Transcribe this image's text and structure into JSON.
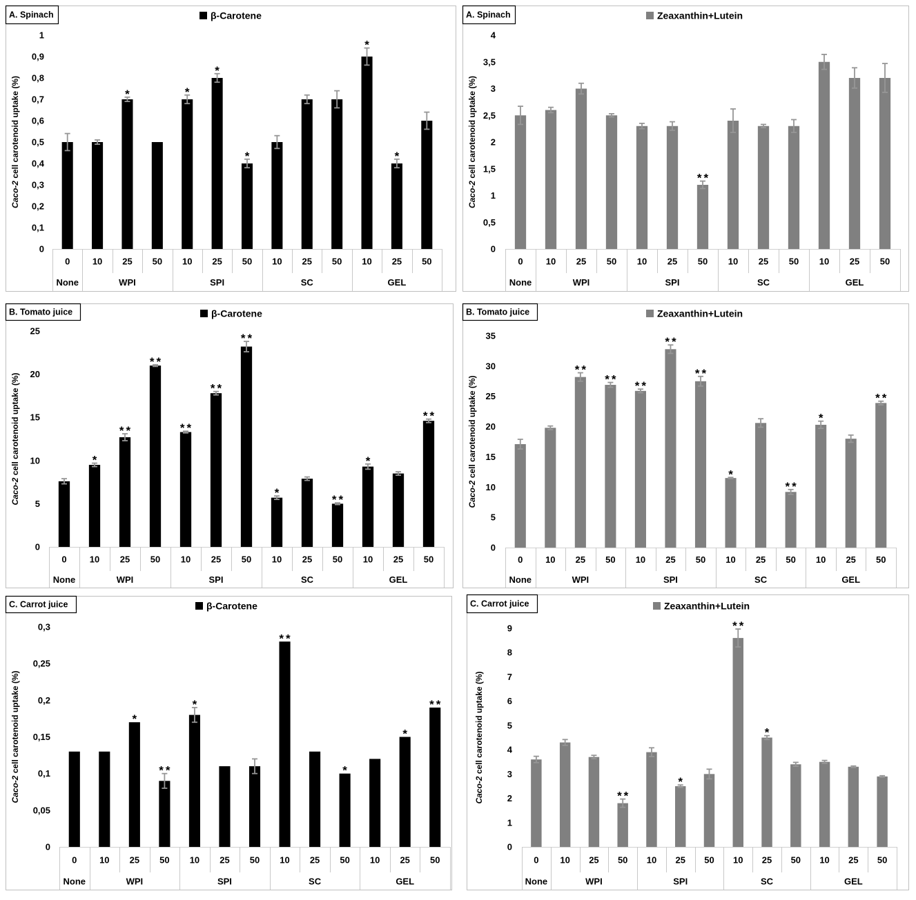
{
  "colors": {
    "error_bar": "#969696",
    "frame": "#bfbfbf",
    "axis": "#d0d0d0",
    "separator": "#c8c8c8"
  },
  "chart_data": [
    {
      "type": "bar",
      "panel_label": "A. Spinach",
      "ylabel": {
        "italic": "Caco-2",
        "rest": "cell carotenoid uptake (%)"
      },
      "ylim": [
        0,
        1
      ],
      "yticks": [
        "0",
        "0,1",
        "0,2",
        "0,3",
        "0,4",
        "0,5",
        "0,6",
        "0,7",
        "0,8",
        "0,9",
        "1"
      ],
      "categories": [
        "0",
        "10",
        "25",
        "50",
        "10",
        "25",
        "50",
        "10",
        "25",
        "50",
        "10",
        "25",
        "50"
      ],
      "groups": [
        {
          "name": "None",
          "size": 1
        },
        {
          "name": "WPI",
          "size": 3
        },
        {
          "name": "SPI",
          "size": 3
        },
        {
          "name": "SC",
          "size": 3
        },
        {
          "name": "GEL",
          "size": 3
        }
      ],
      "legend_position": "top",
      "grid": false,
      "series": [
        {
          "name": "β-Carotene",
          "color": "#000000",
          "values": [
            0.5,
            0.5,
            0.7,
            0.5,
            0.7,
            0.8,
            0.4,
            0.5,
            0.7,
            0.7,
            0.9,
            0.4,
            0.6
          ],
          "errors": [
            0.04,
            0.01,
            0.01,
            0.0,
            0.02,
            0.02,
            0.02,
            0.03,
            0.02,
            0.04,
            0.04,
            0.02,
            0.04
          ],
          "significance": [
            "",
            "",
            "*",
            "",
            "*",
            "*",
            "*",
            "",
            "",
            "",
            "*",
            "*",
            ""
          ]
        }
      ]
    },
    {
      "type": "bar",
      "panel_label": "A. Spinach",
      "ylabel": {
        "italic": "Caco-2",
        "rest": "cell carotenoid uptake (%)"
      },
      "ylim": [
        0,
        4
      ],
      "yticks": [
        "0",
        "0,5",
        "1",
        "1,5",
        "2",
        "2,5",
        "3",
        "3,5",
        "4"
      ],
      "categories": [
        "0",
        "10",
        "25",
        "50",
        "10",
        "25",
        "50",
        "10",
        "25",
        "50",
        "10",
        "25",
        "50"
      ],
      "groups": [
        {
          "name": "None",
          "size": 1
        },
        {
          "name": "WPI",
          "size": 3
        },
        {
          "name": "SPI",
          "size": 3
        },
        {
          "name": "SC",
          "size": 3
        },
        {
          "name": "GEL",
          "size": 3
        }
      ],
      "legend_position": "top",
      "grid": false,
      "series": [
        {
          "name": "Zeaxanthin+Lutein",
          "color": "#808080",
          "values": [
            2.5,
            2.6,
            3.0,
            2.5,
            2.3,
            2.3,
            1.2,
            2.4,
            2.3,
            2.3,
            3.5,
            3.2,
            3.2
          ],
          "errors": [
            0.17,
            0.05,
            0.1,
            0.03,
            0.05,
            0.08,
            0.07,
            0.22,
            0.03,
            0.12,
            0.14,
            0.19,
            0.27
          ],
          "significance": [
            "",
            "",
            "",
            "",
            "",
            "",
            "**",
            "",
            "",
            "",
            "",
            "",
            ""
          ]
        }
      ]
    },
    {
      "type": "bar",
      "panel_label": "B. Tomato juice",
      "ylabel": {
        "italic": "Caco-2",
        "rest": "cell carotenoid uptake (%)"
      },
      "ylim": [
        0,
        25
      ],
      "yticks": [
        "0",
        "5",
        "10",
        "15",
        "20",
        "25"
      ],
      "categories": [
        "0",
        "10",
        "25",
        "50",
        "10",
        "25",
        "50",
        "10",
        "25",
        "50",
        "10",
        "25",
        "50"
      ],
      "groups": [
        {
          "name": "None",
          "size": 1
        },
        {
          "name": "WPI",
          "size": 3
        },
        {
          "name": "SPI",
          "size": 3
        },
        {
          "name": "SC",
          "size": 3
        },
        {
          "name": "GEL",
          "size": 3
        }
      ],
      "legend_position": "top",
      "grid": false,
      "series": [
        {
          "name": "β-Carotene",
          "color": "#000000",
          "values": [
            7.6,
            9.5,
            12.7,
            21.0,
            13.3,
            17.8,
            23.2,
            5.7,
            7.9,
            5.0,
            9.3,
            8.5,
            14.6
          ],
          "errors": [
            0.3,
            0.2,
            0.4,
            0.1,
            0.1,
            0.2,
            0.6,
            0.2,
            0.2,
            0.1,
            0.3,
            0.2,
            0.2
          ],
          "significance": [
            "",
            "*",
            "**",
            "**",
            "**",
            "**",
            "**",
            "*",
            "",
            "**",
            "*",
            "",
            "**"
          ]
        }
      ]
    },
    {
      "type": "bar",
      "panel_label": "B. Tomato juice",
      "ylabel": {
        "italic": "Caco-2",
        "rest": "cell carotenoid uptake (%)"
      },
      "ylim": [
        0,
        35
      ],
      "yticks": [
        "0",
        "5",
        "10",
        "15",
        "20",
        "25",
        "30",
        "35"
      ],
      "categories": [
        "0",
        "10",
        "25",
        "50",
        "10",
        "25",
        "50",
        "10",
        "25",
        "50",
        "10",
        "25",
        "50"
      ],
      "groups": [
        {
          "name": "None",
          "size": 1
        },
        {
          "name": "WPI",
          "size": 3
        },
        {
          "name": "SPI",
          "size": 3
        },
        {
          "name": "SC",
          "size": 3
        },
        {
          "name": "GEL",
          "size": 3
        }
      ],
      "legend_position": "top",
      "grid": false,
      "series": [
        {
          "name": "Zeaxanthin+Lutein",
          "color": "#808080",
          "values": [
            17.1,
            19.8,
            28.2,
            26.9,
            25.9,
            32.8,
            27.5,
            11.5,
            20.6,
            9.2,
            20.3,
            18.0,
            23.9
          ],
          "errors": [
            0.8,
            0.3,
            0.7,
            0.4,
            0.3,
            0.7,
            0.8,
            0.1,
            0.7,
            0.4,
            0.6,
            0.6,
            0.3
          ],
          "significance": [
            "",
            "",
            "**",
            "**",
            "**",
            "**",
            "**",
            "*",
            "",
            "**",
            "*",
            "",
            "**"
          ]
        }
      ]
    },
    {
      "type": "bar",
      "panel_label": "C. Carrot juice",
      "ylabel": {
        "italic": "Caco-2",
        "rest": "cell carotenoid uptake (%)"
      },
      "ylim": [
        0,
        0.3
      ],
      "yticks": [
        "0",
        "0,05",
        "0,1",
        "0,15",
        "0,2",
        "0,25",
        "0,3"
      ],
      "categories": [
        "0",
        "10",
        "25",
        "50",
        "10",
        "25",
        "50",
        "10",
        "25",
        "50",
        "10",
        "25",
        "50"
      ],
      "groups": [
        {
          "name": "None",
          "size": 1
        },
        {
          "name": "WPI",
          "size": 3
        },
        {
          "name": "SPI",
          "size": 3
        },
        {
          "name": "SC",
          "size": 3
        },
        {
          "name": "GEL",
          "size": 3
        }
      ],
      "legend_position": "top",
      "grid": false,
      "series": [
        {
          "name": "β-Carotene",
          "color": "#000000",
          "values": [
            0.13,
            0.13,
            0.17,
            0.09,
            0.18,
            0.11,
            0.11,
            0.28,
            0.13,
            0.1,
            0.12,
            0.15,
            0.19
          ],
          "errors": [
            0,
            0,
            0,
            0.01,
            0.01,
            0,
            0.01,
            0,
            0,
            0,
            0,
            0,
            0
          ],
          "significance": [
            "",
            "",
            "*",
            "**",
            "*",
            "",
            "",
            "**",
            "",
            "*",
            "",
            "*",
            "**"
          ]
        }
      ]
    },
    {
      "type": "bar",
      "panel_label": "C. Carrot juice",
      "ylabel": {
        "italic": "Caco-2",
        "rest": "cell carotenoid uptake (%)"
      },
      "ylim": [
        0,
        9
      ],
      "yticks": [
        "0",
        "1",
        "2",
        "3",
        "4",
        "5",
        "6",
        "7",
        "8",
        "9"
      ],
      "categories": [
        "0",
        "10",
        "25",
        "50",
        "10",
        "25",
        "50",
        "10",
        "25",
        "50",
        "10",
        "25",
        "50"
      ],
      "groups": [
        {
          "name": "None",
          "size": 1
        },
        {
          "name": "WPI",
          "size": 3
        },
        {
          "name": "SPI",
          "size": 3
        },
        {
          "name": "SC",
          "size": 3
        },
        {
          "name": "GEL",
          "size": 3
        }
      ],
      "legend_position": "top",
      "grid": false,
      "series": [
        {
          "name": "Zeaxanthin+Lutein",
          "color": "#808080",
          "values": [
            3.6,
            4.3,
            3.7,
            1.8,
            3.9,
            2.5,
            3.0,
            8.6,
            4.5,
            3.4,
            3.5,
            3.3,
            2.9
          ],
          "errors": [
            0.13,
            0.12,
            0.07,
            0.17,
            0.18,
            0.05,
            0.2,
            0.37,
            0.08,
            0.08,
            0.06,
            0.03,
            0.03
          ],
          "significance": [
            "",
            "",
            "",
            "**",
            "",
            "*",
            "",
            "**",
            "*",
            "",
            "",
            "",
            ""
          ]
        }
      ]
    }
  ]
}
